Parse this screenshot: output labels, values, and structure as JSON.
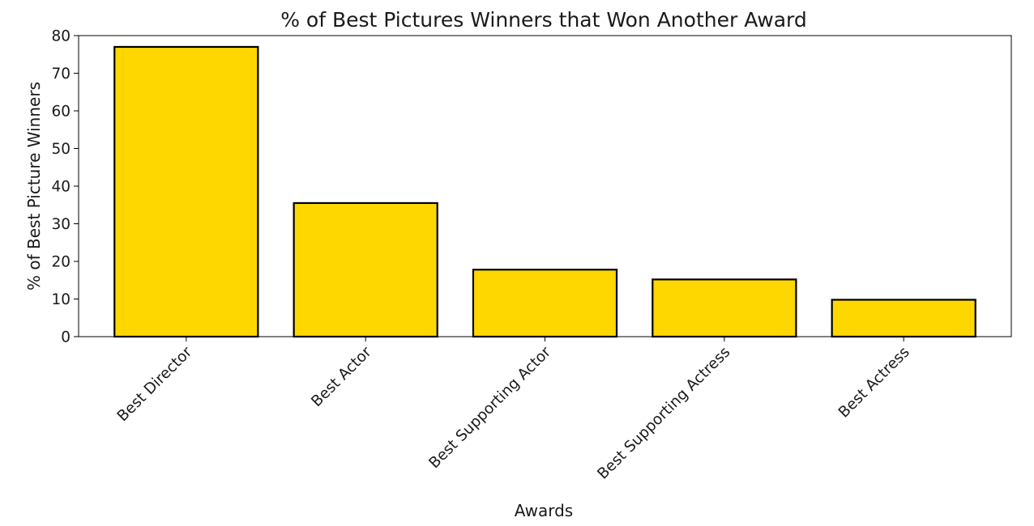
{
  "chart_data": {
    "type": "bar",
    "title": "% of Best Pictures Winners that Won Another Award",
    "xlabel": "Awards",
    "ylabel": "% of Best Picture Winners",
    "categories": [
      "Best Director",
      "Best Actor",
      "Best Supporting Actor",
      "Best Supporting Actress",
      "Best Actress"
    ],
    "values": [
      77,
      35.5,
      17.8,
      15.2,
      9.8
    ],
    "ylim": [
      0,
      80
    ],
    "yticks": [
      0,
      10,
      20,
      30,
      40,
      50,
      60,
      70,
      80
    ],
    "xtick_rotation_deg": 45,
    "grid": false,
    "legend": "none",
    "colors": {
      "bar_fill": "#FFD700",
      "bar_edge": "#000000",
      "axis": "#000000"
    }
  }
}
